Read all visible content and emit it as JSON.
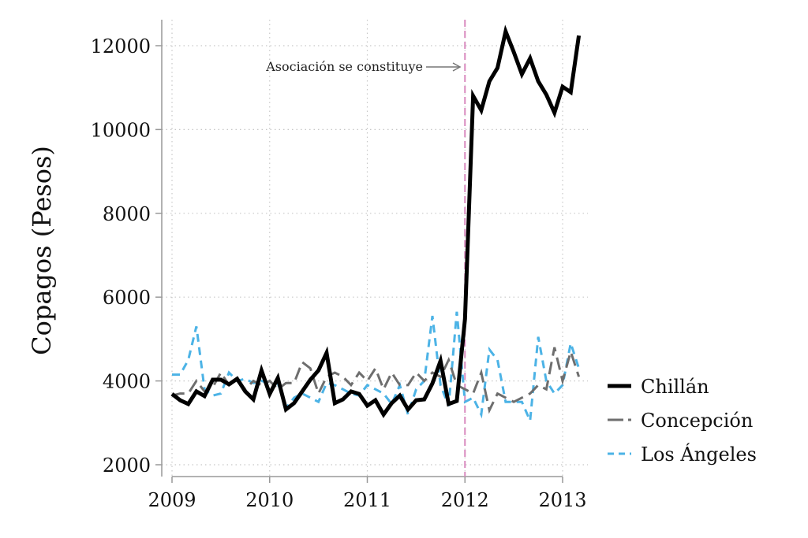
{
  "chart_data": {
    "type": "line",
    "title": "",
    "xlabel": "",
    "ylabel": "Copagos (Pesos)",
    "xlim": [
      2009,
      2013.25
    ],
    "ylim": [
      2000,
      12500
    ],
    "x_ticks": [
      "2009",
      "2010",
      "2011",
      "2012",
      "2013"
    ],
    "y_ticks": [
      "2000",
      "4000",
      "6000",
      "8000",
      "10000",
      "12000"
    ],
    "grid": true,
    "legend_position": "right",
    "x_start": "2009-01",
    "x_frequency": "monthly",
    "annotation": {
      "text": "Asociación se constituye",
      "x": 2012,
      "line_color": "#d98bbf"
    },
    "series": [
      {
        "name": "Chillán",
        "color": "#000000",
        "style": "solid",
        "values": [
          3690,
          3540,
          3450,
          3750,
          3640,
          4030,
          4030,
          3920,
          4050,
          3750,
          3560,
          4250,
          3690,
          4070,
          3320,
          3470,
          3750,
          4030,
          4250,
          4670,
          3470,
          3560,
          3750,
          3690,
          3410,
          3540,
          3200,
          3470,
          3650,
          3320,
          3540,
          3560,
          3940,
          4480,
          3450,
          3520,
          5480,
          10800,
          10460,
          11150,
          11470,
          12340,
          11850,
          11320,
          11700,
          11150,
          10830,
          10400,
          11020,
          10890,
          12240
        ]
      },
      {
        "name": "Concepción",
        "color": "#6e6e6e",
        "style": "longdash",
        "values": [
          3650,
          3700,
          3700,
          4000,
          3750,
          3850,
          4200,
          3900,
          4000,
          3800,
          4000,
          3900,
          4000,
          3800,
          3950,
          3950,
          4450,
          4300,
          3700,
          4100,
          4200,
          4100,
          3900,
          4200,
          4000,
          4300,
          3800,
          4200,
          3900,
          3900,
          4200,
          4000,
          4200,
          4100,
          4500,
          3900,
          3800,
          3700,
          4200,
          3300,
          3700,
          3600,
          3500,
          3600,
          3700,
          3900,
          3800,
          4800,
          4000,
          4700,
          4100
        ]
      },
      {
        "name": "Los Ángeles",
        "color": "#4cb3e6",
        "style": "dash",
        "values": [
          4150,
          4150,
          4500,
          5300,
          3800,
          3650,
          3700,
          4200,
          4000,
          4050,
          3950,
          4000,
          3950,
          3950,
          3350,
          3600,
          3700,
          3600,
          3500,
          3950,
          3900,
          3800,
          3700,
          3650,
          3900,
          3800,
          3700,
          3450,
          3900,
          3200,
          3800,
          4000,
          5550,
          3900,
          3400,
          5650,
          3500,
          3600,
          3200,
          4750,
          4500,
          3500,
          3500,
          3500,
          3050,
          5050,
          4000,
          3700,
          3900,
          4900,
          4300
        ]
      }
    ]
  }
}
